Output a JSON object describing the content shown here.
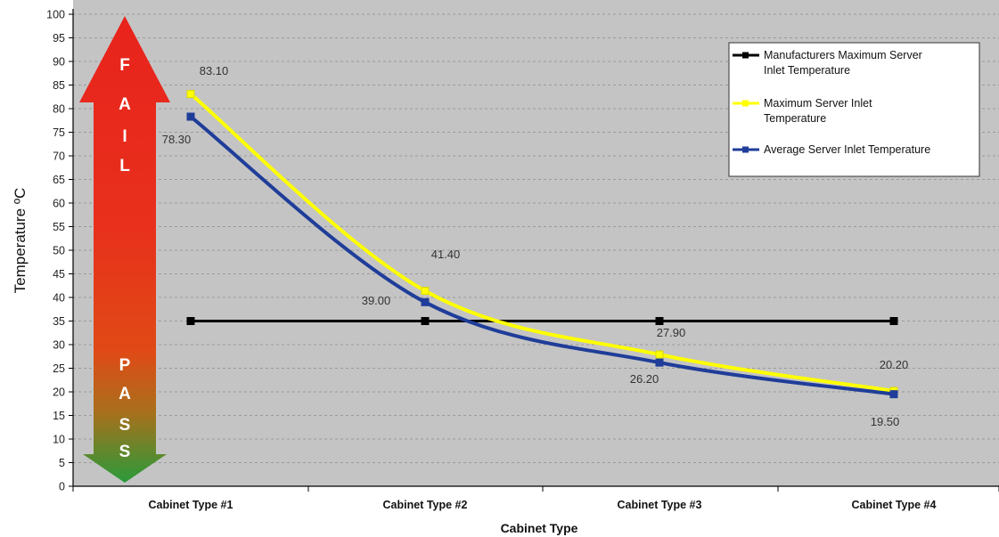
{
  "chart_data": {
    "type": "line",
    "title": "",
    "xlabel": "Cabinet Type",
    "ylabel": "Temperature ºC",
    "categories": [
      "Cabinet Type #1",
      "Cabinet Type #2",
      "Cabinet Type #3",
      "Cabinet Type #4"
    ],
    "ylim": [
      0,
      100
    ],
    "ytick_step": 5,
    "grid": "horizontal dashed",
    "legend_position": "top-right",
    "series": [
      {
        "name": "Manufacturers Maximum Server Inlet Temperature",
        "legend_lines": [
          "Manufacturers Maximum Server",
          "Inlet Temperature"
        ],
        "values": [
          35,
          35,
          35,
          35
        ],
        "color": "#000000",
        "marker": "square",
        "data_labels": [
          "",
          "",
          "",
          ""
        ]
      },
      {
        "name": "Maximum Server Inlet Temperature",
        "legend_lines": [
          "Maximum Server Inlet",
          "Temperature"
        ],
        "values": [
          83.1,
          41.4,
          27.9,
          20.2
        ],
        "color": "#ffff00",
        "marker": "square",
        "data_labels": [
          "83.10",
          "41.40",
          "27.90",
          "20.20"
        ]
      },
      {
        "name": "Average Server Inlet Temperature",
        "legend_lines": [
          "Average Server Inlet Temperature"
        ],
        "values": [
          78.3,
          39.0,
          26.2,
          19.5
        ],
        "color": "#1f3d99",
        "marker": "square",
        "data_labels": [
          "78.30",
          "39.00",
          "26.20",
          "19.50"
        ]
      }
    ],
    "annotations": {
      "fail_letters": [
        "F",
        "A",
        "I",
        "L"
      ],
      "pass_letters": [
        "P",
        "A",
        "S",
        "S"
      ]
    },
    "colors": {
      "plot_background": "#c4c4c4",
      "gridline": "#9a9a9a",
      "arrow_top": "#e8231c",
      "arrow_bottom": "#2a9a3a"
    }
  }
}
